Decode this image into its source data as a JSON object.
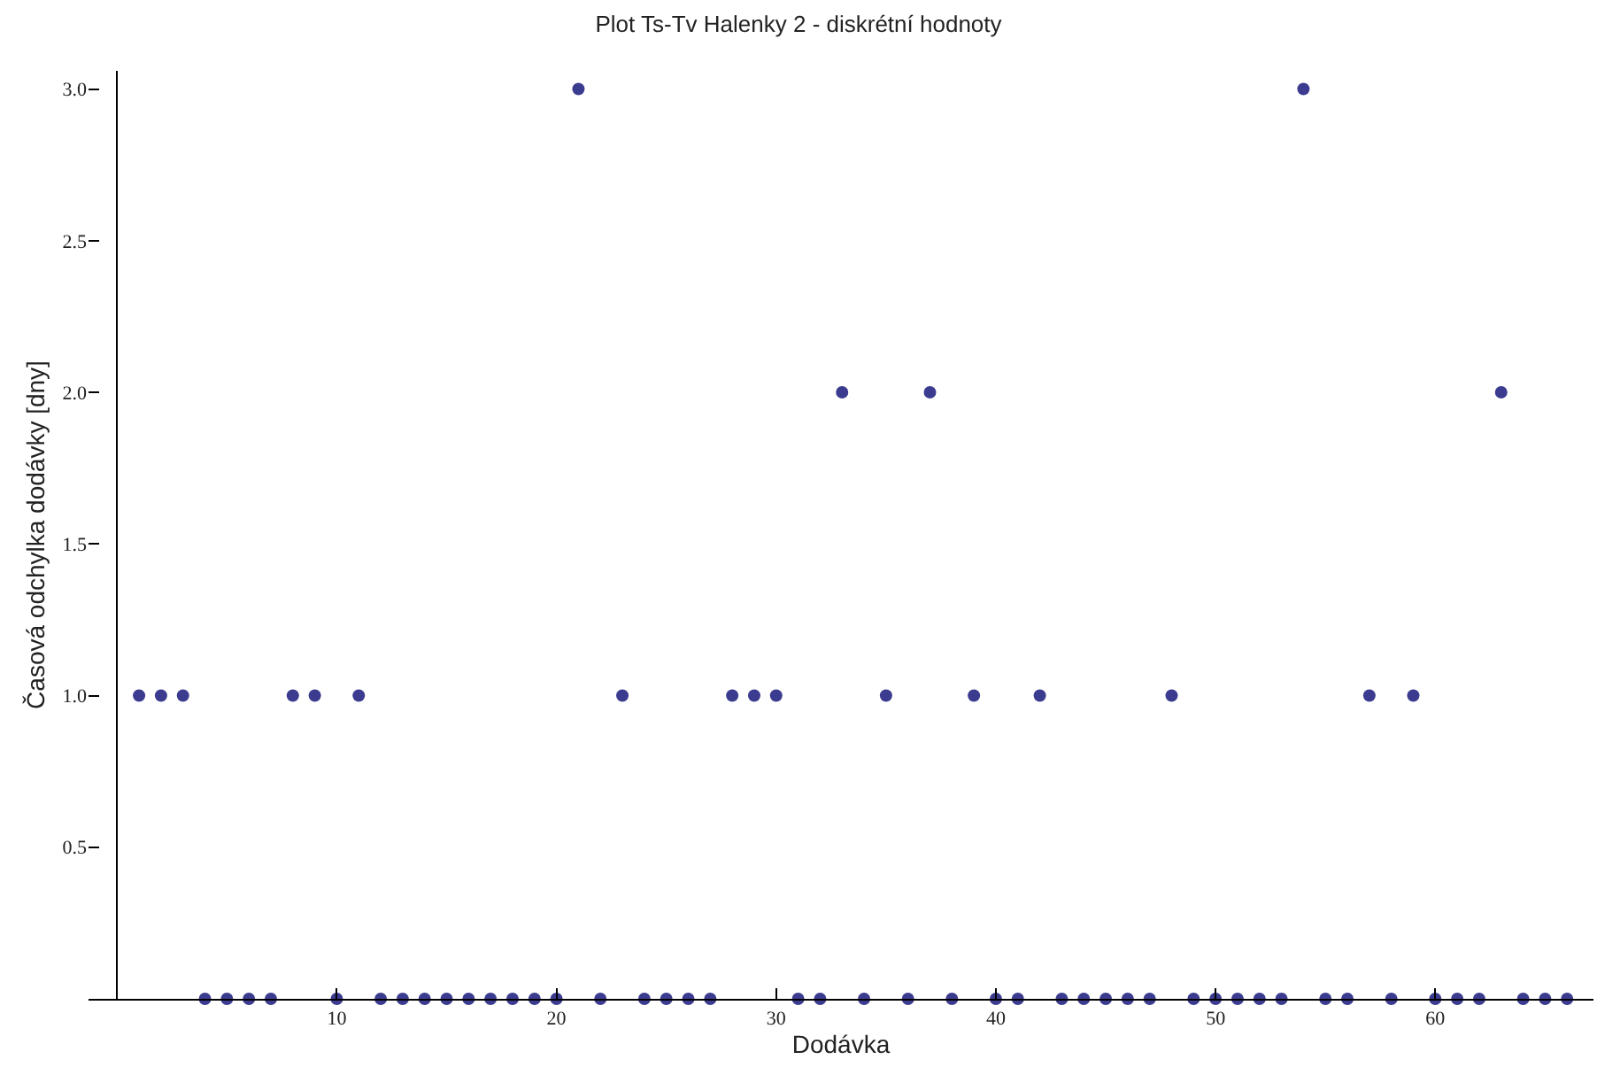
{
  "chart_data": {
    "type": "scatter",
    "title": "Plot Ts-Tv Halenky 2 - diskrétní hodnoty",
    "xlabel": "Dodávka",
    "ylabel": "Časová odchylka dodávky [dny]",
    "x": [
      1,
      2,
      3,
      4,
      5,
      6,
      7,
      8,
      9,
      10,
      11,
      12,
      13,
      14,
      15,
      16,
      17,
      18,
      19,
      20,
      21,
      22,
      23,
      24,
      25,
      26,
      27,
      28,
      29,
      30,
      31,
      32,
      33,
      34,
      35,
      36,
      37,
      38,
      39,
      40,
      41,
      42,
      43,
      44,
      45,
      46,
      47,
      48,
      49,
      50,
      51,
      52,
      53,
      54,
      55,
      56,
      57,
      58,
      59,
      60,
      61,
      62,
      63,
      64,
      65,
      66
    ],
    "series": [
      {
        "color": "#3b3b8f",
        "values": [
          1,
          1,
          1,
          0,
          0,
          0,
          0,
          1,
          1,
          0,
          1,
          0,
          0,
          0,
          0,
          0,
          0,
          0,
          0,
          0,
          3,
          0,
          1,
          0,
          0,
          0,
          0,
          1,
          1,
          1,
          0,
          0,
          2,
          0,
          1,
          0,
          2,
          0,
          1,
          0,
          0,
          1,
          0,
          0,
          0,
          0,
          0,
          1,
          0,
          0,
          0,
          0,
          0,
          3,
          0,
          0,
          1,
          0,
          1,
          0,
          0,
          0,
          2,
          0,
          0,
          0
        ]
      }
    ],
    "xlim": [
      -1.3,
      67.2
    ],
    "ylim": [
      0,
      3.06
    ],
    "xticks": [
      10,
      20,
      30,
      40,
      50,
      60
    ],
    "yticks": [
      {
        "value": 0.5,
        "label": "0.5"
      },
      {
        "value": 1,
        "label": "1.0"
      },
      {
        "value": 1.5,
        "label": "1.5"
      },
      {
        "value": 2,
        "label": "2.0"
      },
      {
        "value": 2.5,
        "label": "2.5"
      },
      {
        "value": 3,
        "label": "3.0"
      }
    ],
    "grid": false,
    "marker": "circle"
  }
}
